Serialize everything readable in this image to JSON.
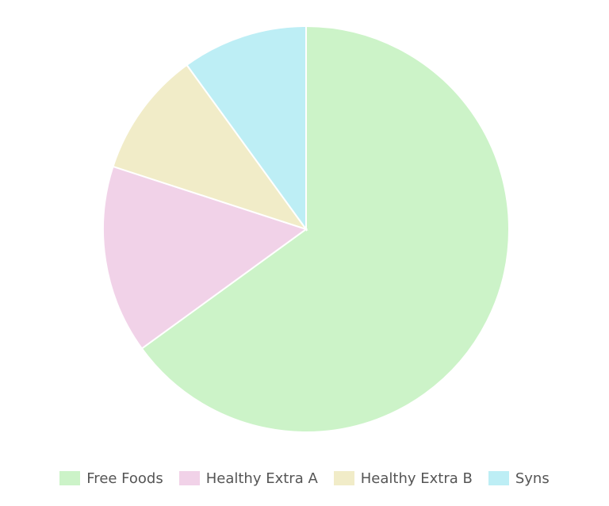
{
  "chart_data": {
    "type": "pie",
    "slices": [
      {
        "label": "Free Foods",
        "value": 65,
        "color": "#ccf3c8"
      },
      {
        "label": "Healthy Extra A",
        "value": 15,
        "color": "#f1d2e8"
      },
      {
        "label": "Healthy Extra B",
        "value": 10,
        "color": "#f1ecc8"
      },
      {
        "label": "Syns",
        "value": 10,
        "color": "#bdeef5"
      }
    ],
    "legend_position": "bottom",
    "start": "top",
    "direction": "clockwise"
  },
  "legend": {
    "items": [
      {
        "label": "Free Foods",
        "color": "#ccf3c8"
      },
      {
        "label": "Healthy Extra A",
        "color": "#f1d2e8"
      },
      {
        "label": "Healthy Extra B",
        "color": "#f1ecc8"
      },
      {
        "label": "Syns",
        "color": "#bdeef5"
      }
    ]
  }
}
